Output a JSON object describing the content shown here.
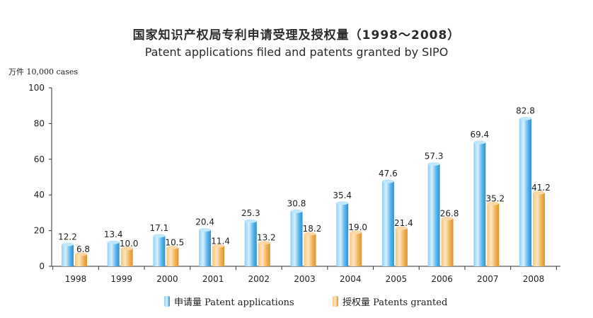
{
  "chart_data": {
    "type": "bar",
    "title": "国家知识产权局专利申请受理及授权量（1998～2008）",
    "subtitle": "Patent applications filed and patents granted by SIPO",
    "unit_label": "万件 10,000 cases",
    "categories": [
      "1998",
      "1999",
      "2000",
      "2001",
      "2002",
      "2003",
      "2004",
      "2005",
      "2006",
      "2007",
      "2008"
    ],
    "series": [
      {
        "name": "申请量 Patent applications",
        "color": "#4aaee8",
        "values": [
          12.2,
          13.4,
          17.1,
          20.4,
          25.3,
          30.8,
          35.4,
          47.6,
          57.3,
          69.4,
          82.8
        ],
        "labels": [
          "12.2",
          "13.4",
          "17.1",
          "20.4",
          "25.3",
          "30.8",
          "35.4",
          "47.6",
          "57.3",
          "69.4",
          "82.8"
        ]
      },
      {
        "name": "授权量 Patents granted",
        "color": "#f2ae4e",
        "values": [
          6.8,
          10.0,
          10.5,
          11.4,
          13.2,
          18.2,
          19.0,
          21.4,
          26.8,
          35.2,
          41.2
        ],
        "labels": [
          "6.8",
          "10.0",
          "10.5",
          "11.4",
          "13.2",
          "18.2",
          "19.0",
          "21.4",
          "26.8",
          "35.2",
          "41.2"
        ]
      }
    ],
    "y_ticks": [
      "0",
      "20",
      "40",
      "60",
      "80",
      "100"
    ],
    "ylim": [
      0,
      100
    ],
    "grid": false,
    "legend_position": "bottom"
  }
}
